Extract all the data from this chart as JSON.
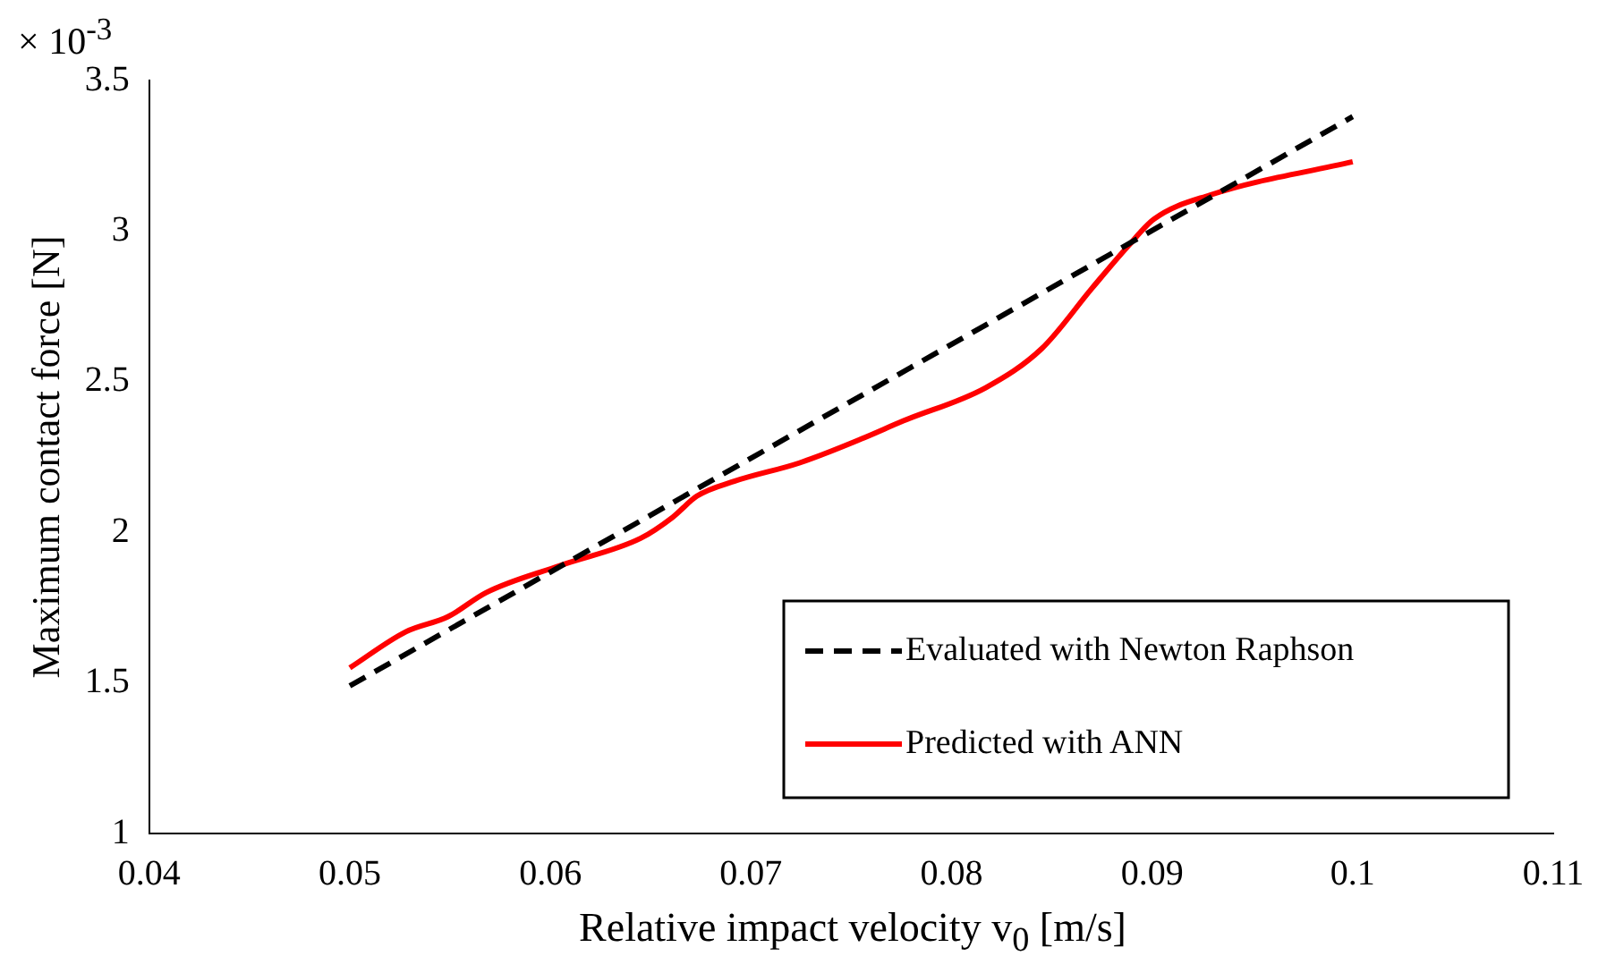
{
  "chart_data": {
    "type": "line",
    "xlabel": "Relative impact velocity v$_{0}$ [m/s]",
    "ylabel": "Maximum contact force [N]",
    "annotations": [
      "× 10$^{-3}$"
    ],
    "xlim": [
      0.04,
      0.11
    ],
    "xticks": [
      0.04,
      0.05,
      0.06,
      0.07,
      0.08,
      0.09,
      0.1,
      0.11
    ],
    "ylim": [
      1,
      3.5
    ],
    "yticks": [
      1,
      1.5,
      2,
      2.5,
      3,
      3.5
    ],
    "grid": false,
    "legend": "bottom right",
    "marker": "none",
    "series": [
      {
        "name": "Evaluated with Newton Raphson",
        "color": "#000000",
        "line_style": "dashed",
        "x": [
          0.05,
          0.1
        ],
        "values": [
          1.49,
          3.38
        ]
      },
      {
        "name": "Predicted with ANN",
        "color": "#ff0000",
        "line_style": "solid",
        "x": [
          0.05,
          0.0528,
          0.0549,
          0.0568,
          0.0605,
          0.0645,
          0.0661,
          0.0673,
          0.0692,
          0.0724,
          0.0755,
          0.0776,
          0.0817,
          0.0845,
          0.087,
          0.0888,
          0.0901,
          0.0929,
          0.1
        ],
        "values": [
          1.55,
          1.67,
          1.72,
          1.8,
          1.89,
          1.98,
          2.05,
          2.12,
          2.17,
          2.23,
          2.31,
          2.37,
          2.48,
          2.61,
          2.81,
          2.95,
          3.04,
          3.12,
          3.23
        ]
      }
    ]
  }
}
